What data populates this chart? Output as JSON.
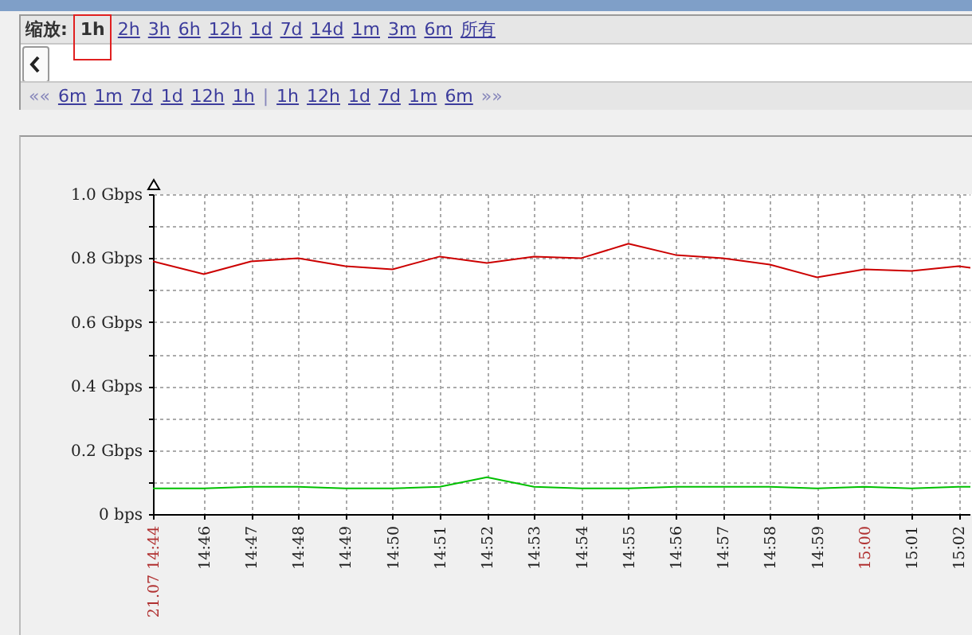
{
  "chart_data": {
    "type": "line",
    "x": [
      14.7487,
      14.76667,
      14.78333,
      14.8,
      14.81667,
      14.83333,
      14.85,
      14.86667,
      14.88333,
      14.9,
      14.91667,
      14.93333,
      14.95,
      14.96667,
      14.98333,
      15.0,
      15.01667,
      15.03333,
      15.0375
    ],
    "series": [
      {
        "color": "#cc0000",
        "values": [
          0.79,
          0.75,
          0.79,
          0.8,
          0.775,
          0.765,
          0.805,
          0.785,
          0.805,
          0.8,
          0.845,
          0.81,
          0.8,
          0.78,
          0.74,
          0.765,
          0.76,
          0.775,
          0.77
        ]
      },
      {
        "color": "#00c000",
        "values": [
          0.08,
          0.08,
          0.085,
          0.085,
          0.08,
          0.08,
          0.085,
          0.115,
          0.085,
          0.08,
          0.08,
          0.085,
          0.085,
          0.085,
          0.08,
          0.085,
          0.08,
          0.085,
          0.085
        ]
      }
    ],
    "xlim": [
      14.7487,
      15.0375
    ],
    "xticks": [
      {
        "value": 14.7487,
        "label": "21.07 14:44"
      },
      {
        "value": 14.76667,
        "label": "14:46"
      },
      {
        "value": 14.78333,
        "label": "14:47"
      },
      {
        "value": 14.8,
        "label": "14:48"
      },
      {
        "value": 14.81667,
        "label": "14:49"
      },
      {
        "value": 14.83333,
        "label": "14:50"
      },
      {
        "value": 14.85,
        "label": "14:51"
      },
      {
        "value": 14.86667,
        "label": "14:52"
      },
      {
        "value": 14.88333,
        "label": "14:53"
      },
      {
        "value": 14.9,
        "label": "14:54"
      },
      {
        "value": 14.91667,
        "label": "14:55"
      },
      {
        "value": 14.93333,
        "label": "14:56"
      },
      {
        "value": 14.95,
        "label": "14:57"
      },
      {
        "value": 14.96667,
        "label": "14:58"
      },
      {
        "value": 14.98333,
        "label": "14:59"
      },
      {
        "value": 15.0,
        "label": "15:00"
      },
      {
        "value": 15.01667,
        "label": "15:01"
      },
      {
        "value": 15.03333,
        "label": "15:02"
      }
    ],
    "ylim": [
      0,
      1.0
    ],
    "yticks": [
      {
        "value": 0,
        "label": "0 bps"
      },
      {
        "value": 0.1,
        "label": null
      },
      {
        "value": 0.2,
        "label": "0.2 Gbps"
      },
      {
        "value": 0.3,
        "label": null
      },
      {
        "value": 0.4,
        "label": "0.4 Gbps"
      },
      {
        "value": 0.5,
        "label": null
      },
      {
        "value": 0.6,
        "label": "0.6 Gbps"
      },
      {
        "value": 0.7,
        "label": null
      },
      {
        "value": 0.8,
        "label": "0.8 Gbps"
      },
      {
        "value": 0.9,
        "label": null
      },
      {
        "value": 1.0,
        "label": "1.0 Gbps"
      }
    ],
    "grid": true,
    "line_style": "solid",
    "annotations": [
      "缩放: 1h 2h 3h 6h 12h 1d 7d 14d 1m 3m 6m 所有",
      "««",
      "6m 1m 7d 1d 12h 1h",
      "|",
      "1h 12h 1d 7d 1m 6m",
      "»»"
    ]
  }
}
